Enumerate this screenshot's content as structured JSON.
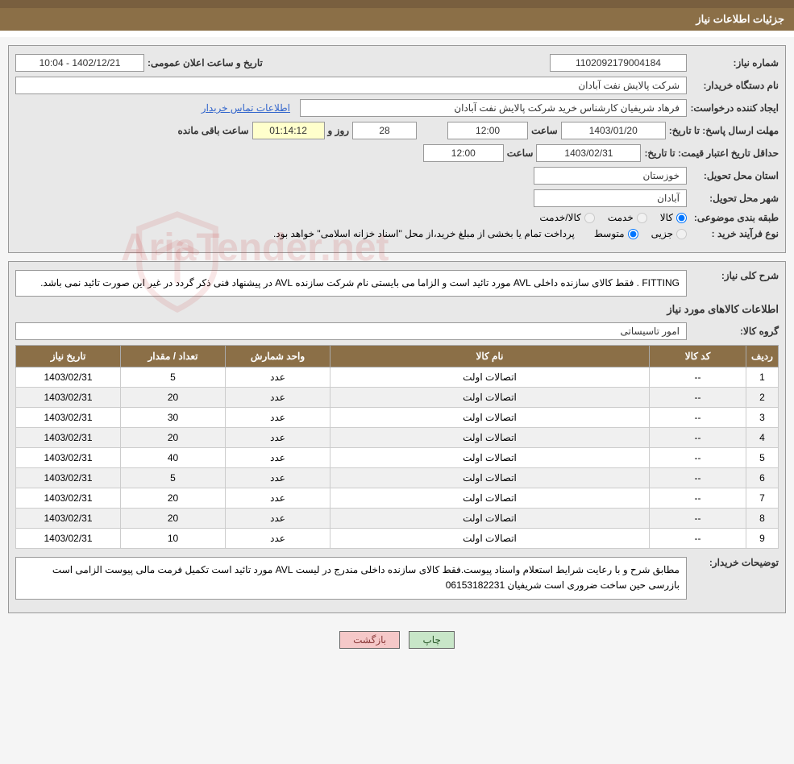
{
  "colors": {
    "header_bg": "#8b6f47",
    "panel_bg": "#e8e8e8",
    "border": "#999999",
    "link": "#3366cc",
    "btn_print_bg": "#c8e6c8",
    "btn_back_bg": "#f5c8c8"
  },
  "header": {
    "title": "جزئیات اطلاعات نیاز"
  },
  "form": {
    "need_number_label": "شماره نیاز:",
    "need_number": "1102092179004184",
    "announce_date_label": "تاریخ و ساعت اعلان عمومی:",
    "announce_date": "1402/12/21 - 10:04",
    "buyer_org_label": "نام دستگاه خریدار:",
    "buyer_org": "شرکت پالایش نفت آبادان",
    "requester_label": "ایجاد کننده درخواست:",
    "requester": "فرهاد شریفیان کارشناس خرید شرکت پالایش نفت آبادان",
    "buyer_contact_link": "اطلاعات تماس خریدار",
    "deadline_label": "مهلت ارسال پاسخ: تا تاریخ:",
    "deadline_date": "1403/01/20",
    "time_label": "ساعت",
    "deadline_time": "12:00",
    "day_label": "روز و",
    "days_remaining": "28",
    "countdown": "01:14:12",
    "remaining_label": "ساعت باقی مانده",
    "validity_label": "حداقل تاریخ اعتبار قیمت: تا تاریخ:",
    "validity_date": "1403/02/31",
    "validity_time": "12:00",
    "province_label": "استان محل تحویل:",
    "province": "خوزستان",
    "city_label": "شهر محل تحویل:",
    "city": "آبادان",
    "category_label": "طبقه بندی موضوعی:",
    "cat_kala": "کالا",
    "cat_khedmat": "خدمت",
    "cat_kala_khedmat": "کالا/خدمت",
    "purchase_type_label": "نوع فرآیند خرید :",
    "type_partial": "جزیی",
    "type_medium": "متوسط",
    "purchase_note": "پرداخت تمام یا بخشی از مبلغ خرید،از محل \"اسناد خزانه اسلامی\" خواهد بود."
  },
  "details": {
    "general_desc_label": "شرح کلی نیاز:",
    "general_desc": "FITTING . فقط کالای سازنده داخلی AVL مورد تائید است و الزاما می بایستی نام شرکت سازنده AVL در پیشنهاد فنی ذکر گردد در غیر این صورت تائید نمی باشد.",
    "items_title": "اطلاعات کالاهای مورد نیاز",
    "group_label": "گروه کالا:",
    "group": "امور تاسیساتی",
    "buyer_notes_label": "توضیحات خریدار:",
    "buyer_notes": "مطابق شرح و با رعایت شرایط استعلام واسناد پیوست.فقط کالای سازنده داخلی مندرج در لیست AVL مورد تائید است تکمیل فرمت مالی پیوست الزامی است بازرسی حین ساخت ضروری است شریفیان 06153182231"
  },
  "table": {
    "headers": {
      "row": "ردیف",
      "code": "کد کالا",
      "name": "نام کالا",
      "unit": "واحد شمارش",
      "qty": "تعداد / مقدار",
      "date": "تاریخ نیاز"
    },
    "rows": [
      {
        "idx": "1",
        "code": "--",
        "name": "اتصالات اولت",
        "unit": "عدد",
        "qty": "5",
        "date": "1403/02/31"
      },
      {
        "idx": "2",
        "code": "--",
        "name": "اتصالات اولت",
        "unit": "عدد",
        "qty": "20",
        "date": "1403/02/31"
      },
      {
        "idx": "3",
        "code": "--",
        "name": "اتصالات اولت",
        "unit": "عدد",
        "qty": "30",
        "date": "1403/02/31"
      },
      {
        "idx": "4",
        "code": "--",
        "name": "اتصالات اولت",
        "unit": "عدد",
        "qty": "20",
        "date": "1403/02/31"
      },
      {
        "idx": "5",
        "code": "--",
        "name": "اتصالات اولت",
        "unit": "عدد",
        "qty": "40",
        "date": "1403/02/31"
      },
      {
        "idx": "6",
        "code": "--",
        "name": "اتصالات اولت",
        "unit": "عدد",
        "qty": "5",
        "date": "1403/02/31"
      },
      {
        "idx": "7",
        "code": "--",
        "name": "اتصالات اولت",
        "unit": "عدد",
        "qty": "20",
        "date": "1403/02/31"
      },
      {
        "idx": "8",
        "code": "--",
        "name": "اتصالات اولت",
        "unit": "عدد",
        "qty": "20",
        "date": "1403/02/31"
      },
      {
        "idx": "9",
        "code": "--",
        "name": "اتصالات اولت",
        "unit": "عدد",
        "qty": "10",
        "date": "1403/02/31"
      }
    ]
  },
  "buttons": {
    "print": "چاپ",
    "back": "بازگشت"
  }
}
